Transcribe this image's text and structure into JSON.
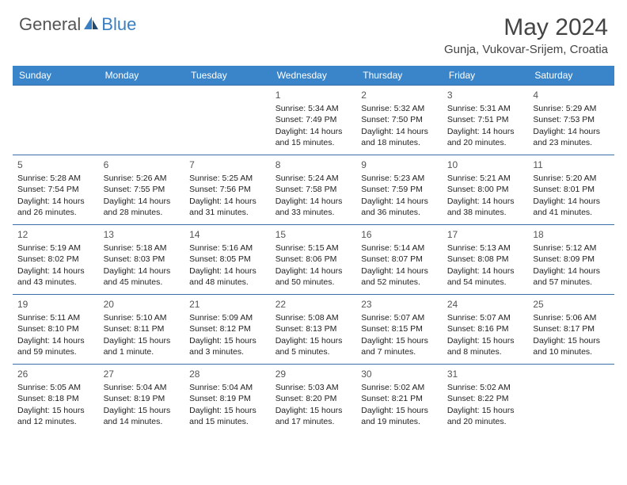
{
  "header": {
    "logo_general": "General",
    "logo_blue": "Blue",
    "month_title": "May 2024",
    "location": "Gunja, Vukovar-Srijem, Croatia"
  },
  "colors": {
    "header_bg": "#3a85c9",
    "header_text": "#ffffff",
    "row_border": "#3a6ea8",
    "logo_blue": "#3a7fc4",
    "body_text": "#222222"
  },
  "calendar": {
    "day_headers": [
      "Sunday",
      "Monday",
      "Tuesday",
      "Wednesday",
      "Thursday",
      "Friday",
      "Saturday"
    ],
    "weeks": [
      [
        null,
        null,
        null,
        {
          "n": "1",
          "sunrise": "5:34 AM",
          "sunset": "7:49 PM",
          "daylight": "14 hours and 15 minutes."
        },
        {
          "n": "2",
          "sunrise": "5:32 AM",
          "sunset": "7:50 PM",
          "daylight": "14 hours and 18 minutes."
        },
        {
          "n": "3",
          "sunrise": "5:31 AM",
          "sunset": "7:51 PM",
          "daylight": "14 hours and 20 minutes."
        },
        {
          "n": "4",
          "sunrise": "5:29 AM",
          "sunset": "7:53 PM",
          "daylight": "14 hours and 23 minutes."
        }
      ],
      [
        {
          "n": "5",
          "sunrise": "5:28 AM",
          "sunset": "7:54 PM",
          "daylight": "14 hours and 26 minutes."
        },
        {
          "n": "6",
          "sunrise": "5:26 AM",
          "sunset": "7:55 PM",
          "daylight": "14 hours and 28 minutes."
        },
        {
          "n": "7",
          "sunrise": "5:25 AM",
          "sunset": "7:56 PM",
          "daylight": "14 hours and 31 minutes."
        },
        {
          "n": "8",
          "sunrise": "5:24 AM",
          "sunset": "7:58 PM",
          "daylight": "14 hours and 33 minutes."
        },
        {
          "n": "9",
          "sunrise": "5:23 AM",
          "sunset": "7:59 PM",
          "daylight": "14 hours and 36 minutes."
        },
        {
          "n": "10",
          "sunrise": "5:21 AM",
          "sunset": "8:00 PM",
          "daylight": "14 hours and 38 minutes."
        },
        {
          "n": "11",
          "sunrise": "5:20 AM",
          "sunset": "8:01 PM",
          "daylight": "14 hours and 41 minutes."
        }
      ],
      [
        {
          "n": "12",
          "sunrise": "5:19 AM",
          "sunset": "8:02 PM",
          "daylight": "14 hours and 43 minutes."
        },
        {
          "n": "13",
          "sunrise": "5:18 AM",
          "sunset": "8:03 PM",
          "daylight": "14 hours and 45 minutes."
        },
        {
          "n": "14",
          "sunrise": "5:16 AM",
          "sunset": "8:05 PM",
          "daylight": "14 hours and 48 minutes."
        },
        {
          "n": "15",
          "sunrise": "5:15 AM",
          "sunset": "8:06 PM",
          "daylight": "14 hours and 50 minutes."
        },
        {
          "n": "16",
          "sunrise": "5:14 AM",
          "sunset": "8:07 PM",
          "daylight": "14 hours and 52 minutes."
        },
        {
          "n": "17",
          "sunrise": "5:13 AM",
          "sunset": "8:08 PM",
          "daylight": "14 hours and 54 minutes."
        },
        {
          "n": "18",
          "sunrise": "5:12 AM",
          "sunset": "8:09 PM",
          "daylight": "14 hours and 57 minutes."
        }
      ],
      [
        {
          "n": "19",
          "sunrise": "5:11 AM",
          "sunset": "8:10 PM",
          "daylight": "14 hours and 59 minutes."
        },
        {
          "n": "20",
          "sunrise": "5:10 AM",
          "sunset": "8:11 PM",
          "daylight": "15 hours and 1 minute."
        },
        {
          "n": "21",
          "sunrise": "5:09 AM",
          "sunset": "8:12 PM",
          "daylight": "15 hours and 3 minutes."
        },
        {
          "n": "22",
          "sunrise": "5:08 AM",
          "sunset": "8:13 PM",
          "daylight": "15 hours and 5 minutes."
        },
        {
          "n": "23",
          "sunrise": "5:07 AM",
          "sunset": "8:15 PM",
          "daylight": "15 hours and 7 minutes."
        },
        {
          "n": "24",
          "sunrise": "5:07 AM",
          "sunset": "8:16 PM",
          "daylight": "15 hours and 8 minutes."
        },
        {
          "n": "25",
          "sunrise": "5:06 AM",
          "sunset": "8:17 PM",
          "daylight": "15 hours and 10 minutes."
        }
      ],
      [
        {
          "n": "26",
          "sunrise": "5:05 AM",
          "sunset": "8:18 PM",
          "daylight": "15 hours and 12 minutes."
        },
        {
          "n": "27",
          "sunrise": "5:04 AM",
          "sunset": "8:19 PM",
          "daylight": "15 hours and 14 minutes."
        },
        {
          "n": "28",
          "sunrise": "5:04 AM",
          "sunset": "8:19 PM",
          "daylight": "15 hours and 15 minutes."
        },
        {
          "n": "29",
          "sunrise": "5:03 AM",
          "sunset": "8:20 PM",
          "daylight": "15 hours and 17 minutes."
        },
        {
          "n": "30",
          "sunrise": "5:02 AM",
          "sunset": "8:21 PM",
          "daylight": "15 hours and 19 minutes."
        },
        {
          "n": "31",
          "sunrise": "5:02 AM",
          "sunset": "8:22 PM",
          "daylight": "15 hours and 20 minutes."
        },
        null
      ]
    ],
    "labels": {
      "sunrise_prefix": "Sunrise: ",
      "sunset_prefix": "Sunset: ",
      "daylight_prefix": "Daylight: "
    }
  }
}
